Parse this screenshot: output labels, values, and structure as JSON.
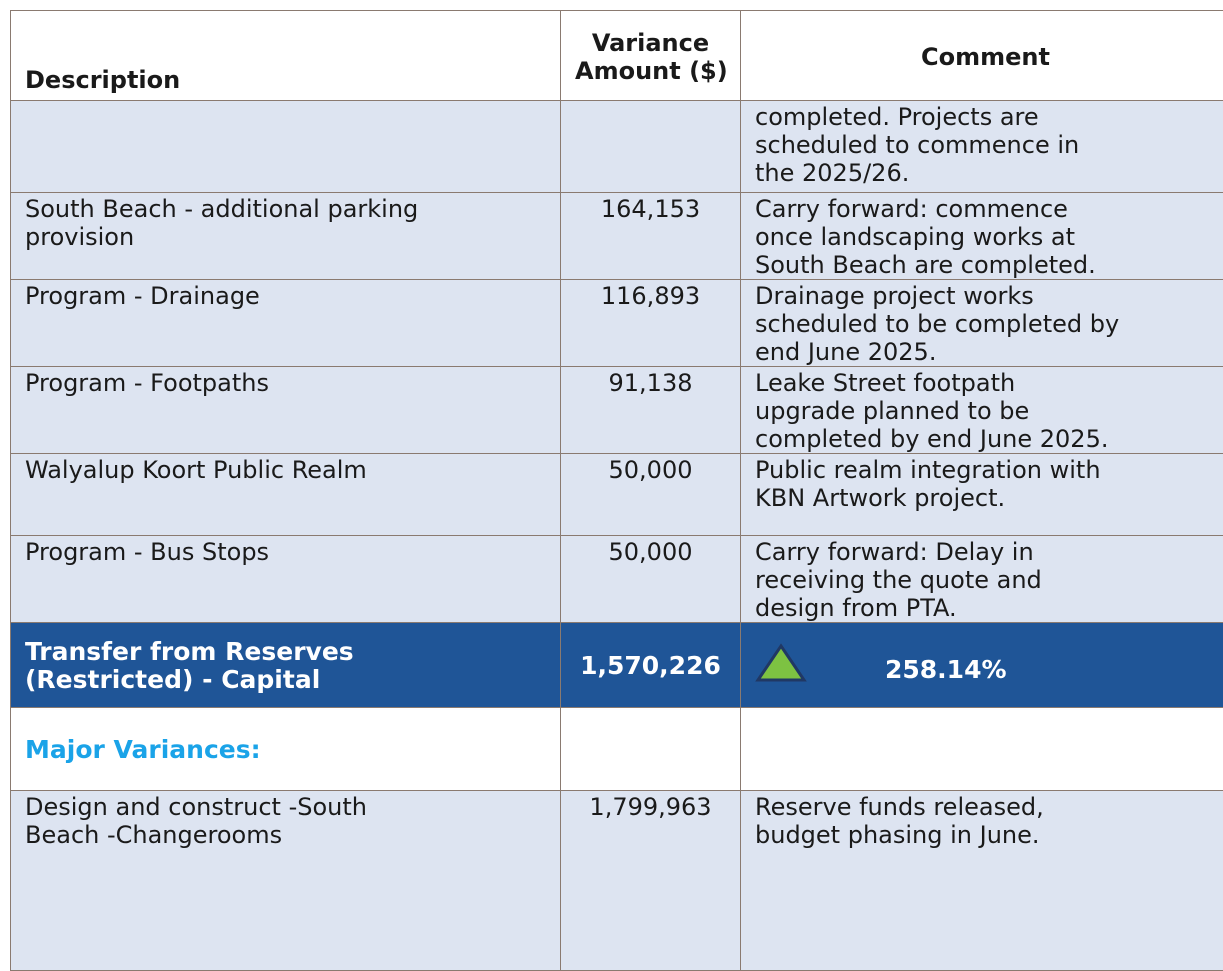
{
  "table": {
    "header": {
      "description": "Description",
      "variance": [
        "Variance",
        "Amount ($)"
      ],
      "comment": "Comment"
    },
    "rows": [
      {
        "comment": [
          "completed. Projects are",
          "scheduled to commence in",
          "the 2025/26."
        ]
      },
      {
        "description": [
          "South Beach - additional parking",
          "provision"
        ],
        "variance": "164,153",
        "comment": [
          "Carry forward: commence",
          "once landscaping works at",
          "South Beach are completed."
        ]
      },
      {
        "description": [
          "Program - Drainage"
        ],
        "variance": "116,893",
        "comment": [
          "Drainage project works",
          "scheduled to be completed by",
          "end June 2025."
        ]
      },
      {
        "description": [
          "Program - Footpaths"
        ],
        "variance": "91,138",
        "comment": [
          "Leake Street footpath",
          "upgrade planned to be",
          "completed by end June 2025."
        ]
      },
      {
        "description": [
          "Walyalup Koort Public Realm"
        ],
        "variance": "50,000",
        "comment": [
          "Public realm integration with",
          "KBN Artwork project."
        ]
      },
      {
        "description": [
          "Program - Bus Stops"
        ],
        "variance": "50,000",
        "comment": [
          "Carry forward: Delay in",
          "receiving the quote and",
          "design from PTA."
        ]
      }
    ],
    "total": {
      "description": [
        "Transfer from Reserves",
        "(Restricted) - Capital"
      ],
      "variance": "1,570,226",
      "percent": "258.14%"
    },
    "section": "Major Variances:",
    "rows2": [
      {
        "description": [
          "Design and construct -South",
          "Beach -Changerooms"
        ],
        "variance": "1,799,963",
        "comment": [
          "Reserve funds released,",
          "budget phasing in June."
        ]
      }
    ]
  }
}
